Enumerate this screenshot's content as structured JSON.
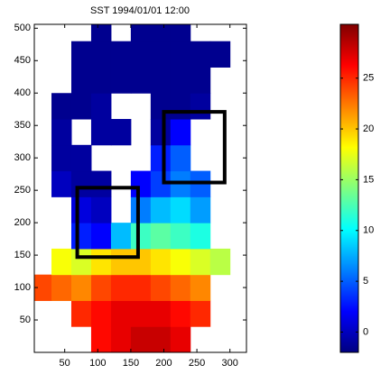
{
  "chart_data": {
    "type": "heatmap",
    "title": "SST 1994/01/01 12:00",
    "colormap": "jet",
    "xlim": [
      4,
      325
    ],
    "ylim": [
      0,
      506
    ],
    "xticks": [
      50,
      100,
      150,
      200,
      250,
      300
    ],
    "yticks": [
      50,
      100,
      150,
      200,
      250,
      300,
      350,
      400,
      450,
      500
    ],
    "clim": [
      -2,
      30.3
    ],
    "cticks": [
      0,
      5,
      10,
      15,
      20,
      25
    ],
    "x": [
      15,
      45,
      75,
      105,
      135,
      165,
      195,
      225,
      255,
      285,
      315
    ],
    "y": [
      20,
      60,
      100,
      140,
      180,
      220,
      260,
      300,
      340,
      380,
      420,
      460,
      500
    ],
    "values": [
      [
        null,
        null,
        null,
        26,
        27,
        28,
        28,
        27,
        null,
        null,
        null
      ],
      [
        null,
        null,
        25,
        26,
        27,
        27,
        27,
        26,
        25,
        null,
        null
      ],
      [
        24,
        23,
        22,
        24,
        25,
        25,
        24,
        23,
        22,
        null,
        null
      ],
      [
        null,
        18,
        17,
        19,
        20,
        20,
        19,
        18,
        17,
        16,
        null
      ],
      [
        null,
        null,
        3,
        2,
        8,
        12,
        13,
        12,
        11,
        null,
        null
      ],
      [
        null,
        null,
        1,
        0,
        null,
        6,
        8,
        9,
        7,
        null,
        null
      ],
      [
        null,
        0,
        -1,
        -1,
        null,
        2,
        4,
        6,
        5,
        null,
        null
      ],
      [
        null,
        -1,
        -1,
        null,
        null,
        null,
        3,
        5,
        null,
        null,
        null
      ],
      [
        null,
        -1,
        null,
        -1,
        -1,
        null,
        -1,
        2,
        null,
        null,
        null
      ],
      [
        null,
        -1.5,
        -1.5,
        -1,
        null,
        null,
        -1.5,
        -1.5,
        -1,
        null,
        null
      ],
      [
        null,
        null,
        -1.5,
        -1.5,
        -1.5,
        -1.5,
        -1.5,
        -1.5,
        -1.5,
        null,
        null
      ],
      [
        null,
        null,
        -1.5,
        -1.5,
        -1.5,
        -1.5,
        -1.5,
        -1.5,
        -1.5,
        -1.5,
        null
      ],
      [
        null,
        null,
        null,
        -1.5,
        null,
        -1.5,
        -1.5,
        -1.5,
        null,
        null,
        null
      ]
    ],
    "boxes": [
      {
        "x": [
          69,
          161
        ],
        "y": [
          147,
          254
        ]
      },
      {
        "x": [
          200,
          292
        ],
        "y": [
          262,
          371
        ]
      }
    ],
    "box_color": "#000000"
  }
}
